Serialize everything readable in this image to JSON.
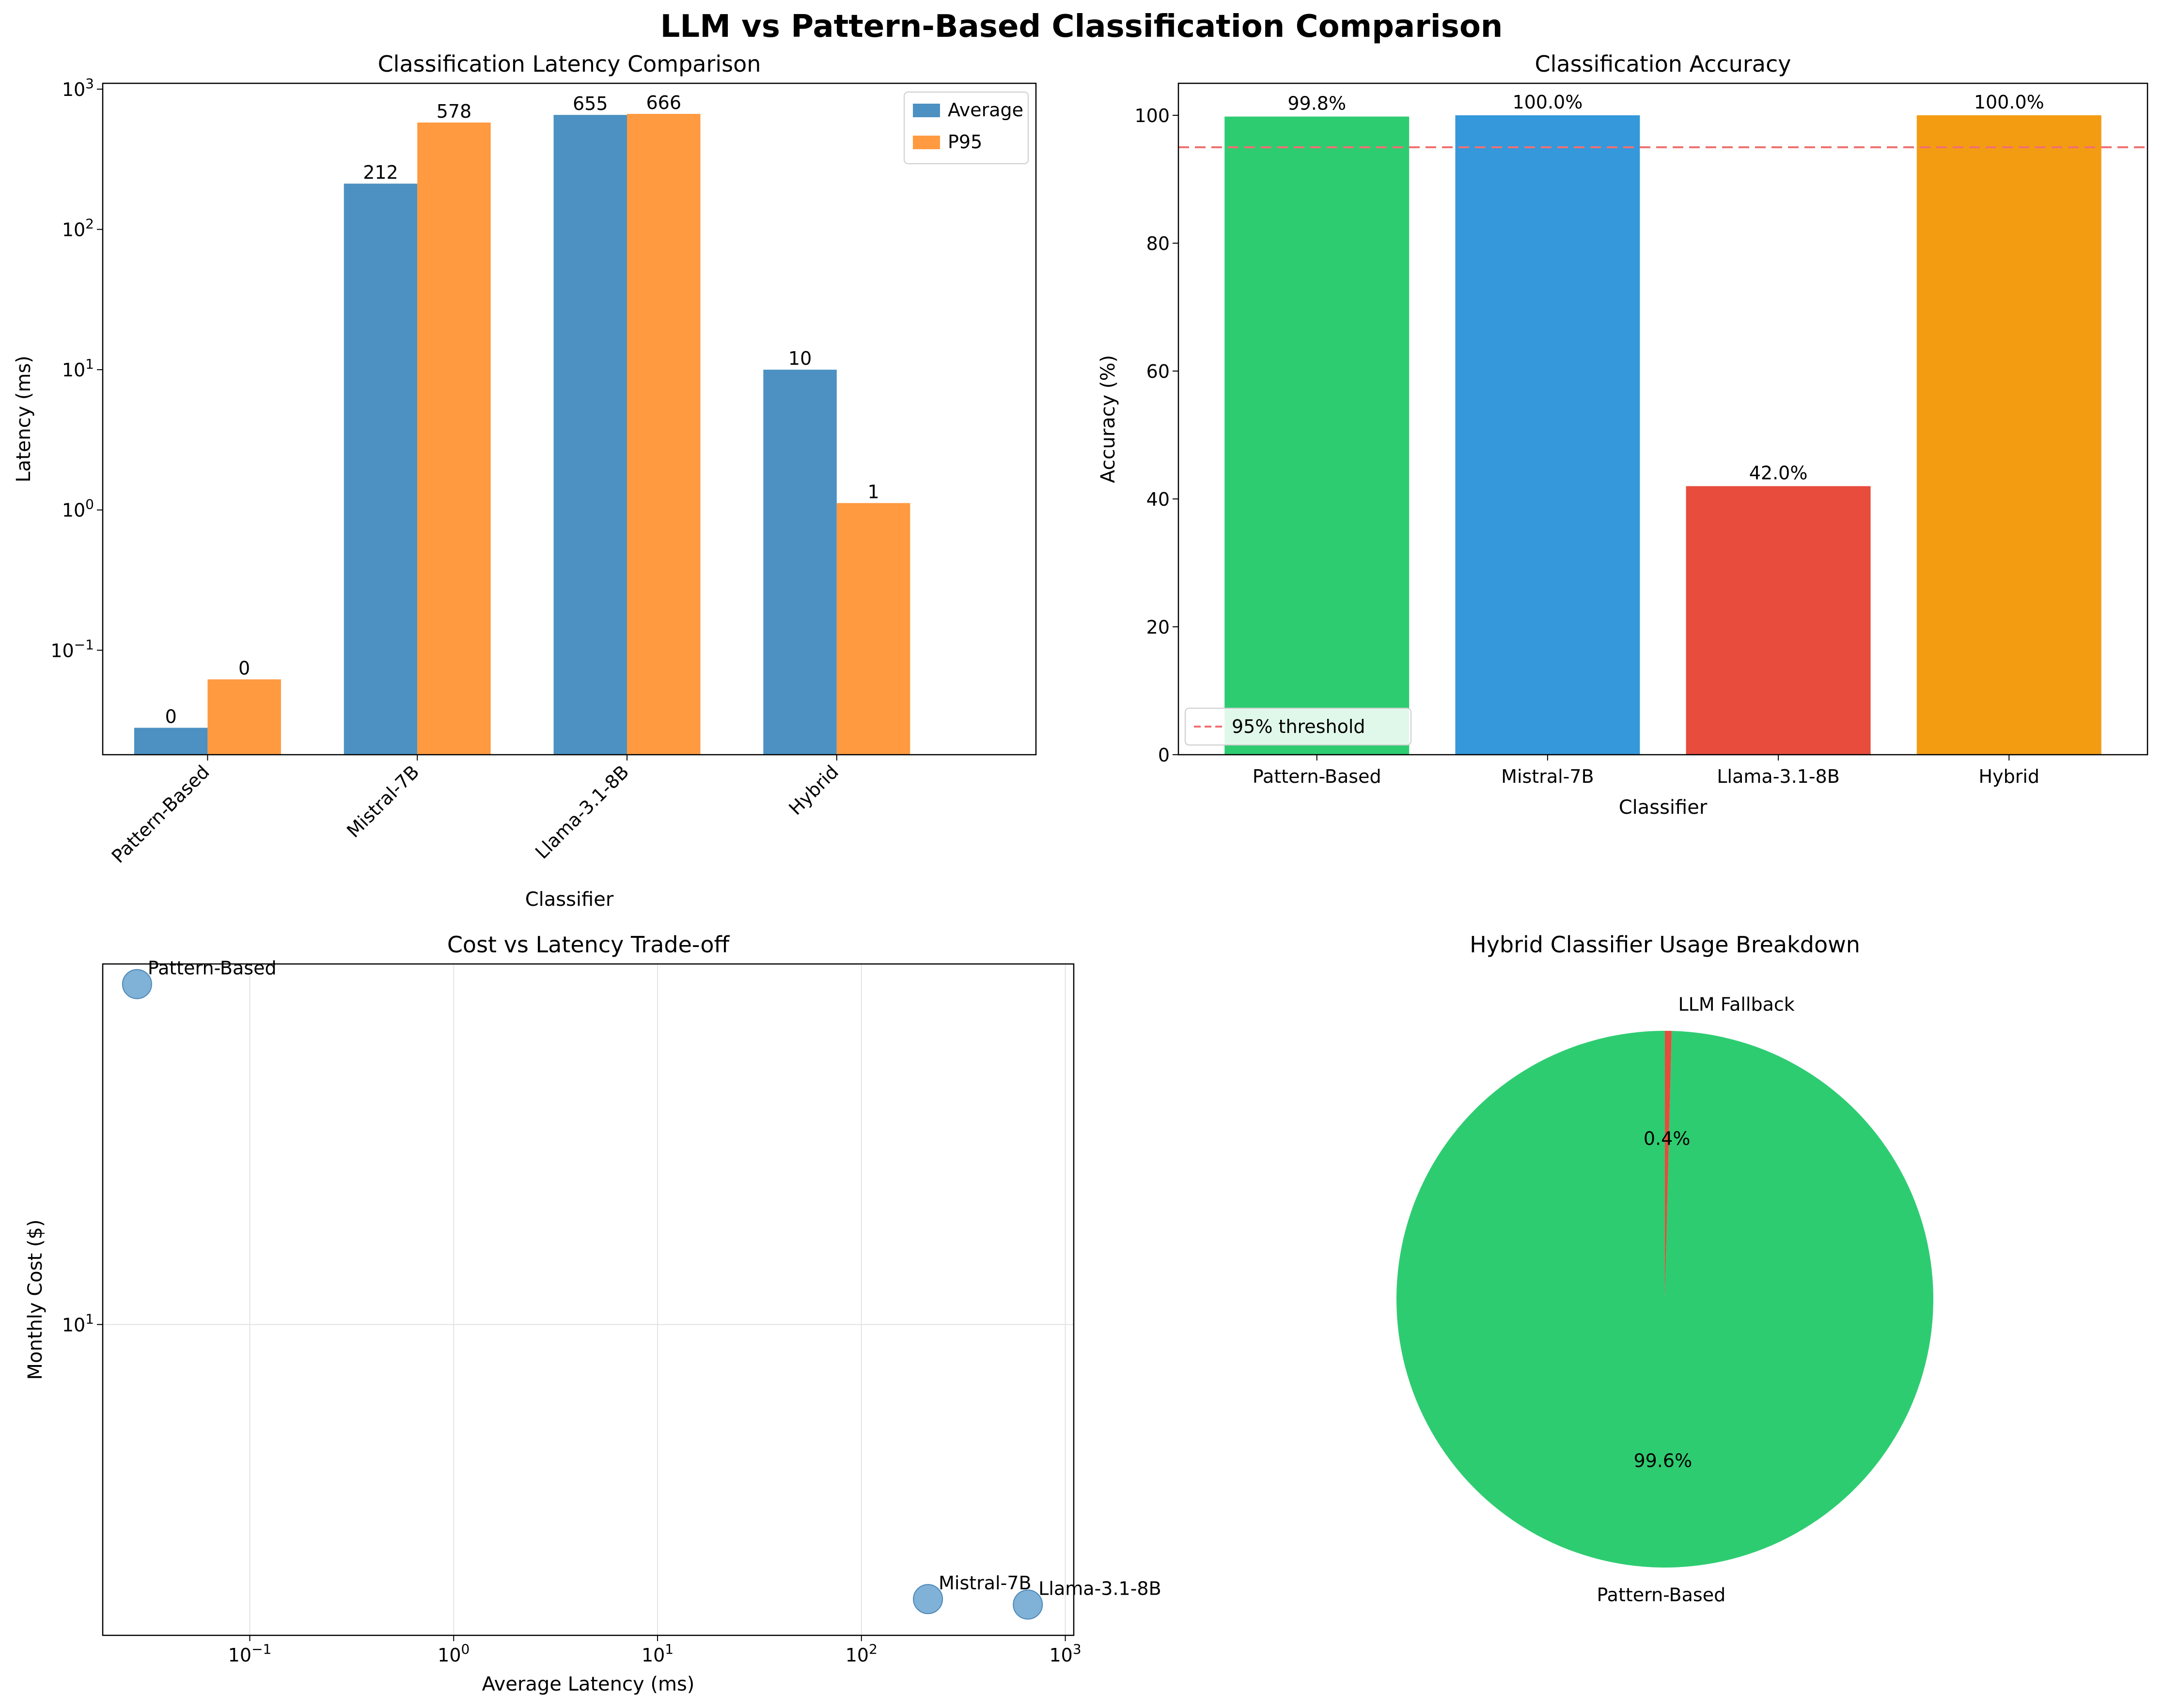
{
  "figure": {
    "title": "LLM vs Pattern-Based Classification Comparison"
  },
  "chart_data": [
    {
      "type": "bar",
      "title": "Classification Latency Comparison",
      "xlabel": "Classifier",
      "ylabel": "Latency (ms)",
      "yscale": "log",
      "ylim": [
        0.018,
        1100
      ],
      "yticks": [
        {
          "value": 0.1,
          "base": "10",
          "exp": "−1"
        },
        {
          "value": 1,
          "base": "10",
          "exp": "0"
        },
        {
          "value": 10,
          "base": "10",
          "exp": "1"
        },
        {
          "value": 100,
          "base": "10",
          "exp": "2"
        },
        {
          "value": 1000,
          "base": "10",
          "exp": "3"
        }
      ],
      "categories": [
        "Pattern-Based",
        "Mistral-7B",
        "Llama-3.1-8B",
        "Hybrid"
      ],
      "series": [
        {
          "name": "Average",
          "color": "#4c91c2",
          "values": [
            0.028,
            212,
            655,
            10
          ],
          "labels": [
            "0",
            "212",
            "655",
            "10"
          ]
        },
        {
          "name": "P95",
          "color": "#ff9a40",
          "values": [
            0.062,
            578,
            666,
            1.12
          ],
          "labels": [
            "0",
            "578",
            "666",
            "1"
          ]
        }
      ],
      "legend": "top-right"
    },
    {
      "type": "bar",
      "title": "Classification Accuracy",
      "xlabel": "Classifier",
      "ylabel": "Accuracy (%)",
      "ylim": [
        0,
        105
      ],
      "yticks": [
        0,
        20,
        40,
        60,
        80,
        100
      ],
      "categories": [
        "Pattern-Based",
        "Mistral-7B",
        "Llama-3.1-8B",
        "Hybrid"
      ],
      "values": [
        99.8,
        100.0,
        42.0,
        100.0
      ],
      "labels": [
        "99.8%",
        "100.0%",
        "42.0%",
        "100.0%"
      ],
      "colors": [
        "#2ecc71",
        "#3498db",
        "#e74c3c",
        "#f39c12"
      ],
      "threshold": {
        "value": 95,
        "label": "95% threshold",
        "color": "#f07070"
      },
      "legend": "lower-left"
    },
    {
      "type": "scatter",
      "title": "Cost vs Latency Trade-off",
      "xlabel": "Average Latency (ms)",
      "ylabel": "Monthly Cost ($)",
      "xscale": "log",
      "yscale": "log",
      "xlim": [
        0.019,
        1100
      ],
      "ylim": [
        2.3,
        55
      ],
      "xticks": [
        {
          "value": 0.1,
          "base": "10",
          "exp": "−1"
        },
        {
          "value": 1,
          "base": "10",
          "exp": "0"
        },
        {
          "value": 10,
          "base": "10",
          "exp": "1"
        },
        {
          "value": 100,
          "base": "10",
          "exp": "2"
        },
        {
          "value": 1000,
          "base": "10",
          "exp": "3"
        }
      ],
      "yticks": [
        {
          "value": 10,
          "base": "10",
          "exp": "1"
        }
      ],
      "grid": true,
      "color": "#72a9d2",
      "points": [
        {
          "label": "Pattern-Based",
          "x": 0.028,
          "y": 50
        },
        {
          "label": "Mistral-7B",
          "x": 212,
          "y": 2.73
        },
        {
          "label": "Llama-3.1-8B",
          "x": 655,
          "y": 2.66
        }
      ]
    },
    {
      "type": "pie",
      "title": "Hybrid Classifier Usage Breakdown",
      "slices": [
        {
          "label": "Pattern-Based",
          "value": 99.6,
          "pct": "99.6%",
          "color": "#2ecc71"
        },
        {
          "label": "LLM Fallback",
          "value": 0.4,
          "pct": "0.4%",
          "color": "#e74c3c"
        }
      ]
    }
  ]
}
